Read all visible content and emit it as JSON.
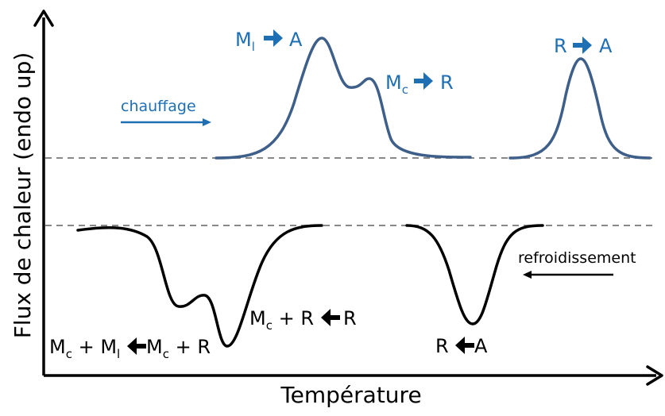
{
  "axes": {
    "x_label": "Température",
    "y_label": "Flux de chaleur (endo up)"
  },
  "heating": {
    "label": "chauffage",
    "color": "#1f6fb5",
    "curve_color": "#3e5f8a",
    "transitions": [
      {
        "from": "M",
        "from_sub": "l",
        "to": "A"
      },
      {
        "from": "M",
        "from_sub": "c",
        "to": "R"
      },
      {
        "from": "R",
        "from_sub": "",
        "to": "A"
      }
    ]
  },
  "cooling": {
    "label": "refroidissement",
    "color": "#000000",
    "transitions": [
      {
        "parts": [
          "M",
          "c",
          " + R "
        ],
        "arrow": "left",
        "result": " R"
      },
      {
        "parts": [
          "M",
          "c",
          " + M",
          "l"
        ],
        "arrow": "left",
        "result_parts": [
          " M",
          "c",
          " + R"
        ]
      },
      {
        "parts": [
          "R "
        ],
        "arrow": "left",
        "result": " A"
      }
    ]
  },
  "baseline_color": "#888888"
}
